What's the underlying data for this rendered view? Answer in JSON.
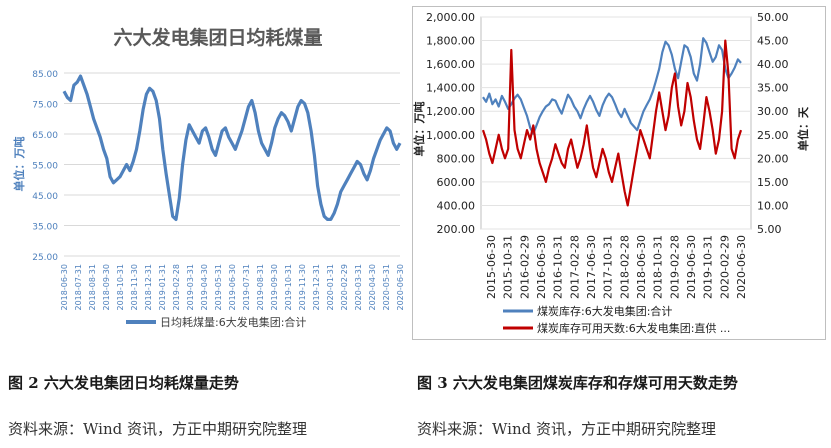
{
  "captions": {
    "fig2": "图 2  六大发电集团日均耗煤量走势",
    "fig3": "图 3  六大发电集团煤炭库存和存煤可用天数走势",
    "source_left": "资料来源：Wind 资讯，方正中期研究院整理",
    "source_right": "资料来源：Wind 资讯，方正中期研究院整理"
  },
  "chart_data": [
    {
      "type": "line",
      "title": "六大发电集团日均耗煤量",
      "ylabel": "单位：万吨",
      "xlabel": "",
      "ylim": [
        25,
        85
      ],
      "y_ticks": [
        "85.00",
        "75.00",
        "65.00",
        "55.00",
        "45.00",
        "35.00",
        "25.00"
      ],
      "y_tick_values": [
        85,
        75,
        65,
        55,
        45,
        35,
        25
      ],
      "x_tick_labels": [
        "2018-06-30",
        "2018-07-31",
        "2018-08-31",
        "2018-09-30",
        "2018-10-31",
        "2018-11-30",
        "2018-12-31",
        "2019-01-31",
        "2019-02-28",
        "2019-03-31",
        "2019-04-30",
        "2019-05-31",
        "2019-06-30",
        "2019-07-31",
        "2019-08-31",
        "2019-09-30",
        "2019-10-31",
        "2019-11-30",
        "2019-12-31",
        "2020-01-31",
        "2020-02-29",
        "2020-03-31",
        "2020-04-30",
        "2020-05-31",
        "2020-06-30"
      ],
      "legend": "top-bottom",
      "series": [
        {
          "name": "日均耗煤量:6大发电集团:合计",
          "color": "#4f81bd",
          "values": [
            79,
            77,
            76,
            81,
            82,
            84,
            81,
            78,
            74,
            70,
            67,
            64,
            60,
            57,
            51,
            49,
            50,
            51,
            53,
            55,
            53,
            56,
            60,
            66,
            73,
            78,
            80,
            79,
            76,
            70,
            60,
            52,
            45,
            38,
            37,
            44,
            55,
            63,
            68,
            66,
            64,
            62,
            66,
            67,
            64,
            60,
            58,
            62,
            66,
            67,
            64,
            62,
            60,
            63,
            66,
            70,
            74,
            76,
            72,
            66,
            62,
            60,
            58,
            62,
            67,
            70,
            72,
            71,
            69,
            66,
            70,
            74,
            76,
            75,
            72,
            66,
            58,
            48,
            42,
            38,
            37,
            37,
            39,
            42,
            46,
            48,
            50,
            52,
            54,
            56,
            55,
            52,
            50,
            53,
            57,
            60,
            63,
            65,
            67,
            66,
            62,
            60,
            62
          ]
        }
      ]
    },
    {
      "type": "line",
      "title": "",
      "ylabel": "单位：万吨",
      "y2label": "单位：天",
      "ylim": [
        200,
        2000
      ],
      "y2lim": [
        5,
        50
      ],
      "y_ticks": [
        "2,000.00",
        "1,800.00",
        "1,600.00",
        "1,400.00",
        "1,200.00",
        "1,000.00",
        "800.00",
        "600.00",
        "400.00",
        "200.00"
      ],
      "y_tick_values": [
        2000,
        1800,
        1600,
        1400,
        1200,
        1000,
        800,
        600,
        400,
        200
      ],
      "y2_ticks": [
        "50.00",
        "45.00",
        "40.00",
        "35.00",
        "30.00",
        "25.00",
        "20.00",
        "15.00",
        "10.00",
        "5.00"
      ],
      "y2_tick_values": [
        50,
        45,
        40,
        35,
        30,
        25,
        20,
        15,
        10,
        5
      ],
      "x_tick_labels": [
        "2015-06-30",
        "2015-10-31",
        "2016-02-29",
        "2016-06-30",
        "2016-10-31",
        "2017-02-28",
        "2017-06-30",
        "2017-10-31",
        "2018-02-28",
        "2018-06-30",
        "2018-10-31",
        "2019-02-28",
        "2019-06-30",
        "2019-10-31",
        "2020-02-29",
        "2020-06-30"
      ],
      "legend": "bottom",
      "series": [
        {
          "name": "煤炭库存:6大发电集团:合计",
          "color": "#4f81bd",
          "axis": "left",
          "values": [
            1320,
            1280,
            1350,
            1260,
            1300,
            1240,
            1330,
            1280,
            1220,
            1260,
            1310,
            1340,
            1300,
            1230,
            1160,
            1060,
            1010,
            1080,
            1150,
            1200,
            1240,
            1260,
            1300,
            1290,
            1230,
            1180,
            1260,
            1340,
            1300,
            1240,
            1200,
            1140,
            1220,
            1280,
            1330,
            1280,
            1210,
            1160,
            1250,
            1310,
            1350,
            1320,
            1260,
            1190,
            1150,
            1220,
            1160,
            1100,
            1070,
            1040,
            1120,
            1200,
            1250,
            1300,
            1370,
            1460,
            1560,
            1700,
            1790,
            1760,
            1680,
            1560,
            1480,
            1620,
            1760,
            1740,
            1660,
            1520,
            1460,
            1600,
            1820,
            1780,
            1700,
            1620,
            1660,
            1760,
            1720,
            1560,
            1480,
            1520,
            1570,
            1640,
            1610
          ]
        },
        {
          "name": "煤炭库存可用天数:6大发电集团:直供 ...",
          "color": "#c00000",
          "axis": "right",
          "values": [
            26,
            24,
            21,
            19,
            22,
            25,
            22,
            20,
            22,
            43,
            26,
            22,
            20,
            23,
            26,
            24,
            27,
            22,
            19,
            17,
            15,
            18,
            20,
            23,
            21,
            19,
            18,
            22,
            24,
            21,
            18,
            20,
            23,
            27,
            22,
            18,
            16,
            19,
            22,
            20,
            17,
            15,
            18,
            21,
            17,
            13,
            10,
            14,
            18,
            22,
            26,
            24,
            22,
            20,
            25,
            30,
            34,
            30,
            26,
            29,
            35,
            38,
            31,
            27,
            30,
            36,
            33,
            28,
            24,
            22,
            27,
            33,
            30,
            26,
            21,
            24,
            30,
            45,
            38,
            22,
            20,
            24,
            26
          ]
        }
      ]
    }
  ]
}
